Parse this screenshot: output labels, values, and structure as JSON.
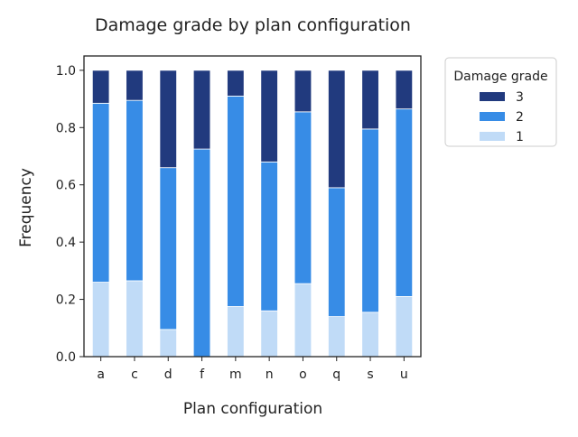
{
  "chart_data": {
    "type": "bar",
    "stacked": true,
    "title": "Damage grade by plan configuration",
    "xlabel": "Plan configuration",
    "ylabel": "Frequency",
    "ylim": [
      0,
      1.05
    ],
    "yticks": [
      "0.0",
      "0.2",
      "0.4",
      "0.6",
      "0.8",
      "1.0"
    ],
    "categories": [
      "a",
      "c",
      "d",
      "f",
      "m",
      "n",
      "o",
      "q",
      "s",
      "u"
    ],
    "series": [
      {
        "name": "1",
        "color": "#c0dbf7",
        "values": [
          0.26,
          0.265,
          0.095,
          0.0,
          0.175,
          0.16,
          0.255,
          0.14,
          0.155,
          0.21
        ]
      },
      {
        "name": "2",
        "color": "#378ce6",
        "values": [
          0.625,
          0.63,
          0.565,
          0.725,
          0.735,
          0.52,
          0.6,
          0.45,
          0.64,
          0.655
        ]
      },
      {
        "name": "3",
        "color": "#213a7e",
        "values": [
          0.115,
          0.105,
          0.34,
          0.275,
          0.09,
          0.32,
          0.145,
          0.41,
          0.205,
          0.135
        ]
      }
    ],
    "legend": {
      "title": "Damage grade",
      "placement": "outside-top-right",
      "order": [
        "3",
        "2",
        "1"
      ]
    },
    "grid": false
  }
}
